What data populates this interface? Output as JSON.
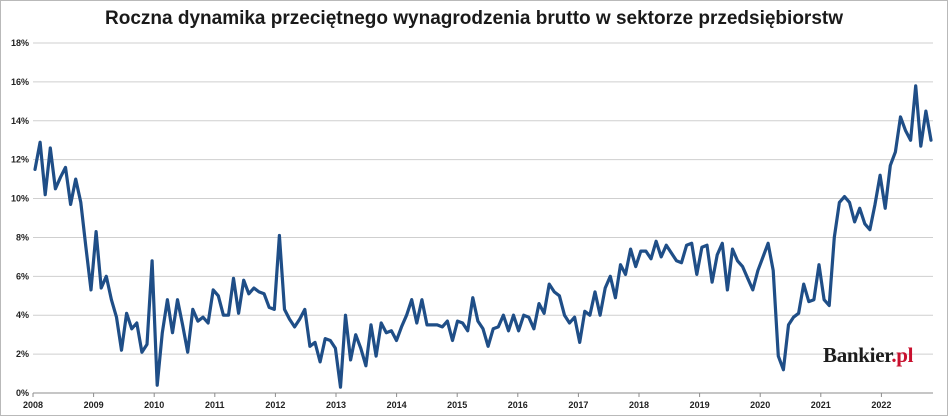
{
  "chart_data": {
    "type": "line",
    "title": "Roczna dynamika przeciętnego wynagrodzenia brutto w sektorze przedsiębiorstw",
    "xlabel": "",
    "ylabel": "",
    "ylim": [
      0,
      18
    ],
    "y_tick_labels": [
      "0%",
      "2%",
      "4%",
      "6%",
      "8%",
      "10%",
      "12%",
      "14%",
      "16%",
      "18%"
    ],
    "x_tick_labels": [
      "2008",
      "2009",
      "2010",
      "2011",
      "2012",
      "2013",
      "2014",
      "2015",
      "2016",
      "2017",
      "2018",
      "2019",
      "2020",
      "2021",
      "2022"
    ],
    "grid": true,
    "line_color": "#1f4e87",
    "series": [
      {
        "values": [
          11.5,
          12.9,
          10.2,
          12.6,
          10.5,
          11.1,
          11.6,
          9.7,
          11.0,
          9.8,
          7.5,
          5.3,
          8.3,
          5.4,
          6.0,
          4.8,
          3.9,
          2.2,
          4.1,
          3.3,
          3.6,
          2.1,
          2.5,
          6.8,
          0.4,
          3.1,
          4.8,
          3.1,
          4.8,
          3.5,
          2.1,
          4.3,
          3.7,
          3.9,
          3.6,
          5.3,
          5.0,
          4.0,
          4.0,
          5.9,
          4.1,
          5.8,
          5.1,
          5.4,
          5.2,
          5.1,
          4.4,
          4.3,
          8.1,
          4.3,
          3.8,
          3.4,
          3.8,
          4.3,
          2.4,
          2.6,
          1.6,
          2.8,
          2.7,
          2.3,
          0.3,
          4.0,
          1.7,
          3.0,
          2.3,
          1.4,
          3.5,
          1.9,
          3.6,
          3.1,
          3.2,
          2.7,
          3.4,
          4.0,
          4.8,
          3.6,
          4.8,
          3.5,
          3.5,
          3.5,
          3.4,
          3.7,
          2.7,
          3.7,
          3.6,
          3.2,
          4.9,
          3.7,
          3.3,
          2.4,
          3.3,
          3.4,
          4.0,
          3.2,
          4.0,
          3.2,
          4.0,
          3.9,
          3.3,
          4.6,
          4.1,
          5.6,
          5.2,
          5.0,
          4.0,
          3.6,
          3.9,
          2.6,
          4.2,
          4.0,
          5.2,
          4.0,
          5.4,
          6.0,
          4.9,
          6.6,
          6.1,
          7.4,
          6.5,
          7.3,
          7.3,
          6.9,
          7.8,
          7.0,
          7.6,
          7.2,
          6.8,
          6.7,
          7.6,
          7.7,
          6.1,
          7.5,
          7.6,
          5.7,
          7.1,
          7.7,
          5.3,
          7.4,
          6.8,
          6.5,
          5.9,
          5.3,
          6.3,
          7.0,
          7.7,
          6.3,
          1.9,
          1.2,
          3.5,
          3.9,
          4.1,
          5.6,
          4.7,
          4.8,
          6.6,
          4.8,
          4.5,
          8.0,
          9.8,
          10.1,
          9.8,
          8.8,
          9.5,
          8.7,
          8.4,
          9.7,
          11.2,
          9.5,
          11.7,
          12.4,
          14.2,
          13.5,
          13.0,
          15.8,
          12.7,
          14.5,
          13.0
        ]
      }
    ]
  },
  "branding": {
    "logo_text": "Bankier",
    "logo_suffix": ".pl"
  }
}
